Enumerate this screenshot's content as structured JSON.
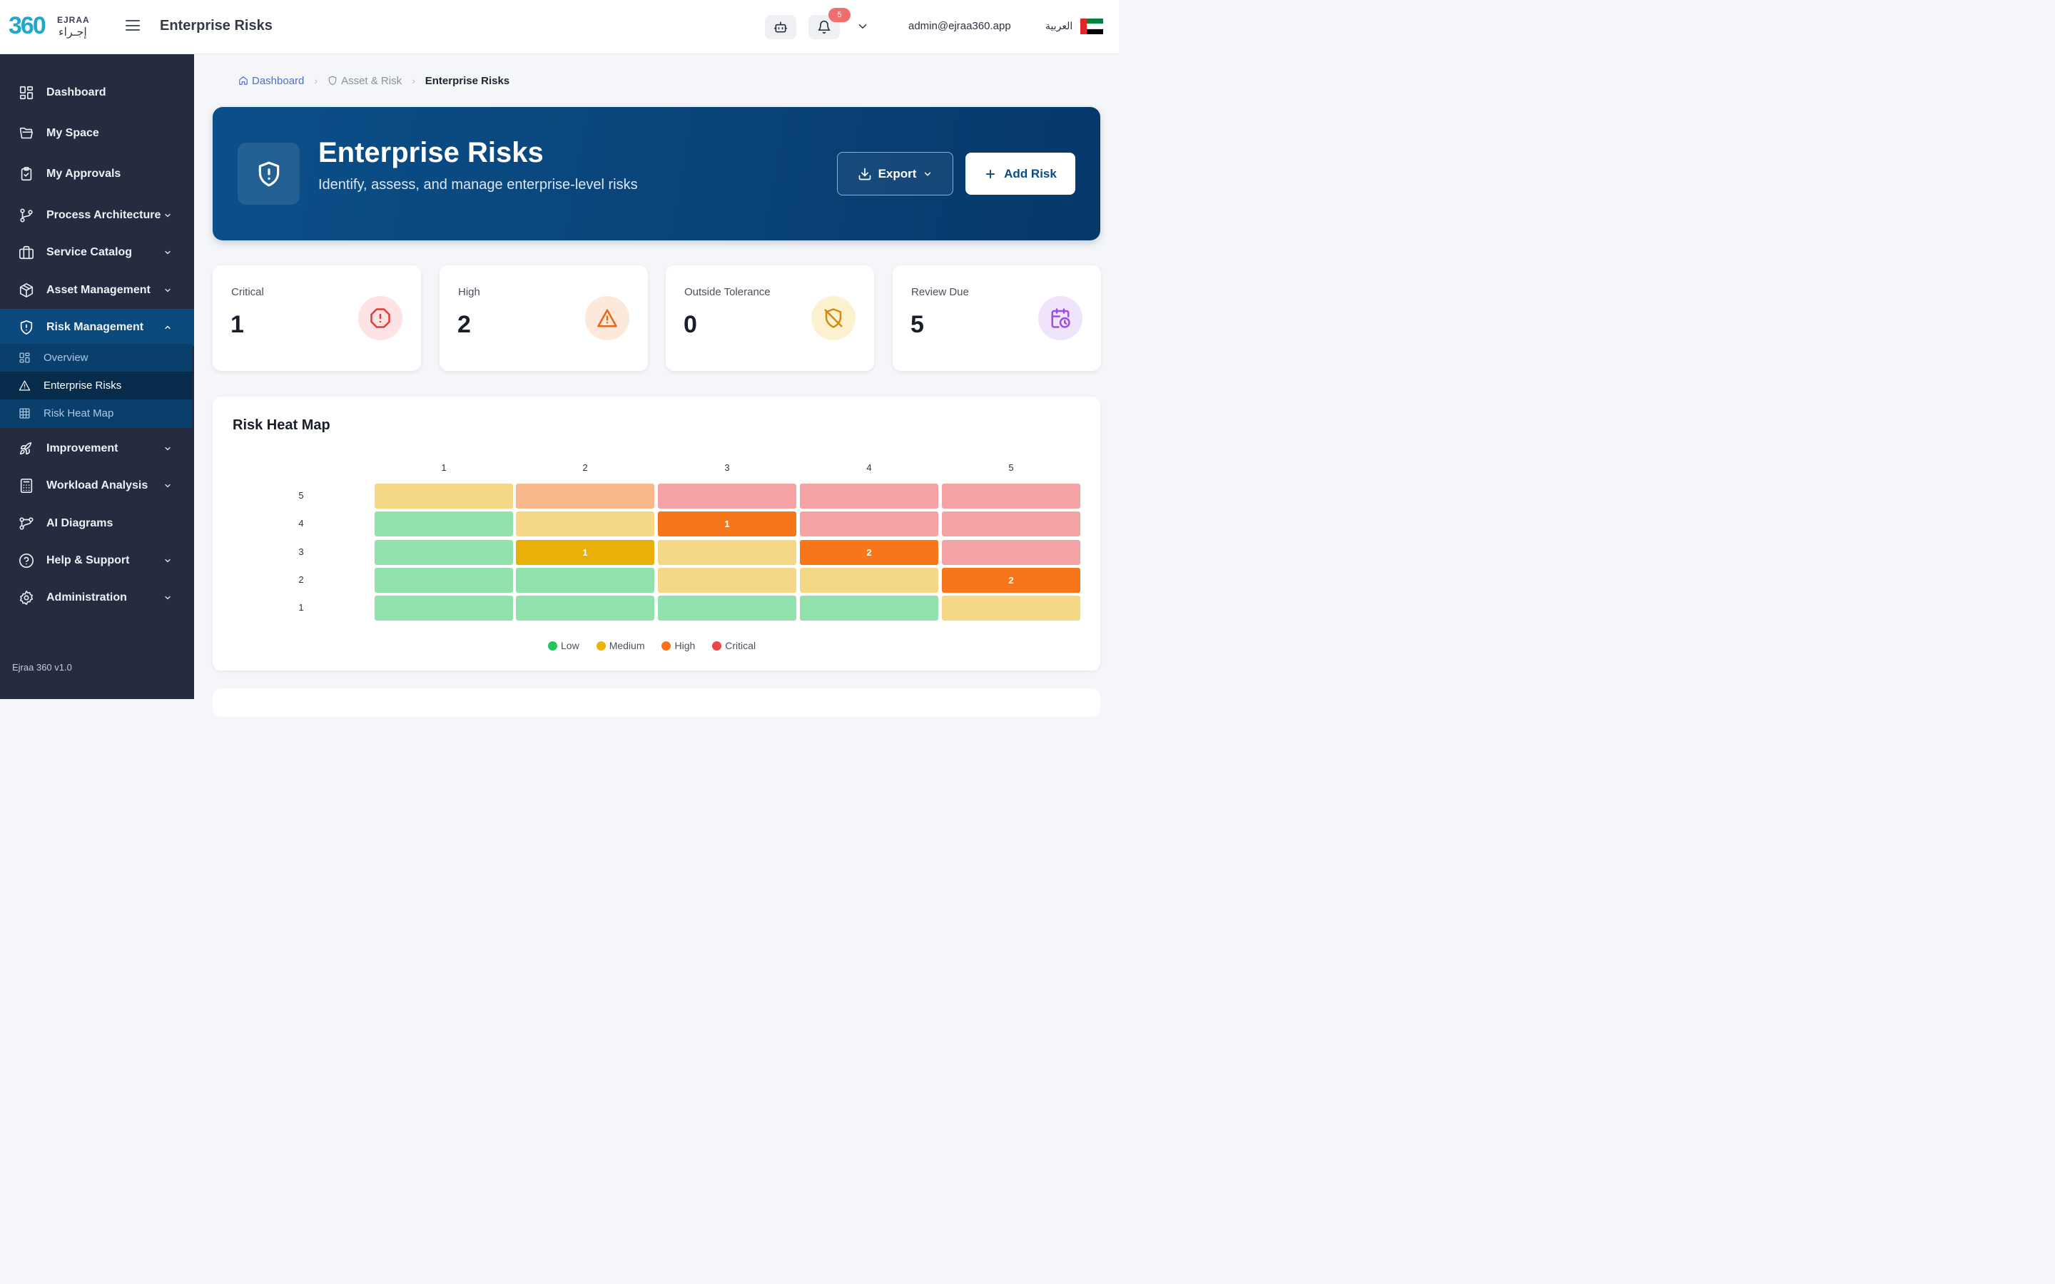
{
  "app": {
    "logo_number": "360",
    "logo_name": "EJRAA",
    "logo_arabic": "إجـراء",
    "page_title": "Enterprise Risks"
  },
  "topbar": {
    "notification_count": "5",
    "user_email": "admin@ejraa360.app",
    "language": "العربية",
    "flag_colors": [
      "#e1262d",
      "#00843d",
      "#ffffff",
      "#000000"
    ]
  },
  "sidebar": {
    "items": [
      {
        "label": "Dashboard",
        "icon": "dashboard-grid-icon"
      },
      {
        "label": "My Space",
        "icon": "folder-open-icon"
      },
      {
        "label": "My Approvals",
        "icon": "clipboard-check-icon"
      },
      {
        "label": "Process Architecture",
        "icon": "git-branch-icon",
        "expandable": true
      },
      {
        "label": "Service Catalog",
        "icon": "briefcase-icon",
        "expandable": true
      },
      {
        "label": "Asset Management",
        "icon": "package-cube-icon",
        "expandable": true
      },
      {
        "label": "Risk Management",
        "icon": "shield-icon",
        "expandable": true,
        "expanded": true
      },
      {
        "label": "Improvement",
        "icon": "rocket-icon",
        "expandable": true
      },
      {
        "label": "Workload Analysis",
        "icon": "calculator-icon",
        "expandable": true
      },
      {
        "label": "AI Diagrams",
        "icon": "workflow-icon"
      },
      {
        "label": "Help & Support",
        "icon": "help-circle-icon",
        "expandable": true
      },
      {
        "label": "Administration",
        "icon": "settings-gear-icon",
        "expandable": true
      }
    ],
    "risk_submenu": [
      {
        "label": "Overview",
        "icon": "grid-icon"
      },
      {
        "label": "Enterprise Risks",
        "icon": "warning-triangle-icon",
        "current": true
      },
      {
        "label": "Risk Heat Map",
        "icon": "table-grid-icon"
      }
    ],
    "version": "Ejraa 360 v1.0",
    "active_color": "#0c4a7d"
  },
  "breadcrumb": {
    "home": "Dashboard",
    "parent": "Asset & Risk",
    "current": "Enterprise Risks"
  },
  "hero": {
    "title": "Enterprise Risks",
    "subtitle": "Identify, assess, and manage enterprise-level risks",
    "export_label": "Export",
    "add_label": "Add Risk"
  },
  "stats": [
    {
      "label": "Critical",
      "value": "1",
      "icon": "alert-octagon-icon",
      "color": "#e23b3b",
      "bg": "#fde3e3"
    },
    {
      "label": "High",
      "value": "2",
      "icon": "alert-triangle-icon",
      "color": "#e8661a",
      "bg": "#fde9d9"
    },
    {
      "label": "Outside Tolerance",
      "value": "0",
      "icon": "shield-off-icon",
      "color": "#d58a09",
      "bg": "#fdf2d0"
    },
    {
      "label": "Review Due",
      "value": "5",
      "icon": "calendar-clock-icon",
      "color": "#9a4ee8",
      "bg": "#f0e4fd"
    }
  ],
  "heatmap": {
    "title": "Risk Heat Map",
    "columns": [
      "1",
      "2",
      "3",
      "4",
      "5"
    ],
    "rows": [
      {
        "label": "5",
        "cells": [
          {
            "level": "medium-light",
            "count": ""
          },
          {
            "level": "high-light",
            "count": ""
          },
          {
            "level": "critical-light",
            "count": ""
          },
          {
            "level": "critical-light",
            "count": ""
          },
          {
            "level": "critical-light",
            "count": ""
          }
        ]
      },
      {
        "label": "4",
        "cells": [
          {
            "level": "low-light",
            "count": ""
          },
          {
            "level": "medium-light",
            "count": ""
          },
          {
            "level": "high",
            "count": "1"
          },
          {
            "level": "critical-light",
            "count": ""
          },
          {
            "level": "critical-light",
            "count": ""
          }
        ]
      },
      {
        "label": "3",
        "cells": [
          {
            "level": "low-light",
            "count": ""
          },
          {
            "level": "medium",
            "count": "1"
          },
          {
            "level": "medium-light",
            "count": ""
          },
          {
            "level": "high",
            "count": "2"
          },
          {
            "level": "critical-light",
            "count": ""
          }
        ]
      },
      {
        "label": "2",
        "cells": [
          {
            "level": "low-light",
            "count": ""
          },
          {
            "level": "low-light",
            "count": ""
          },
          {
            "level": "medium-light",
            "count": ""
          },
          {
            "level": "medium-light",
            "count": ""
          },
          {
            "level": "high",
            "count": "2"
          }
        ]
      },
      {
        "label": "1",
        "cells": [
          {
            "level": "low-light",
            "count": ""
          },
          {
            "level": "low-light",
            "count": ""
          },
          {
            "level": "low-light",
            "count": ""
          },
          {
            "level": "low-light",
            "count": ""
          },
          {
            "level": "medium-light",
            "count": ""
          }
        ]
      }
    ],
    "level_colors": {
      "low-light": "#93e2ad",
      "medium-light": "#f4d886",
      "medium": "#e9b108",
      "high-light": "#f9b88b",
      "high": "#f7761a",
      "critical-light": "#f4a2a4"
    },
    "legend": [
      {
        "label": "Low",
        "color": "#22c55e"
      },
      {
        "label": "Medium",
        "color": "#eab308"
      },
      {
        "label": "High",
        "color": "#f97316"
      },
      {
        "label": "Critical",
        "color": "#ef4444"
      }
    ]
  }
}
